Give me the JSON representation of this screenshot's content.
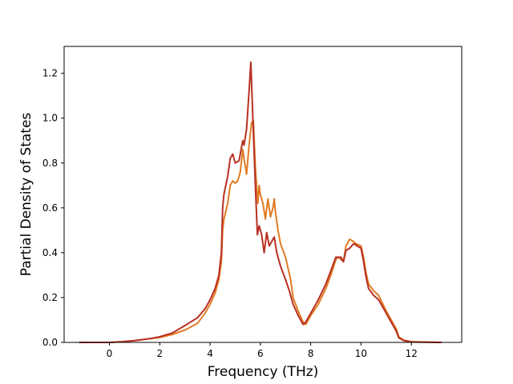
{
  "chart_data": {
    "type": "line",
    "title": "",
    "xlabel": "Frequency (THz)",
    "ylabel": "Partial Density of States",
    "xlim": [
      -1.8,
      14.0
    ],
    "ylim": [
      0.0,
      1.32
    ],
    "xticks": [
      0,
      2,
      4,
      6,
      8,
      10,
      12
    ],
    "xtick_labels": [
      "0",
      "2",
      "4",
      "6",
      "8",
      "10",
      "12"
    ],
    "yticks": [
      0.0,
      0.2,
      0.4,
      0.6,
      0.8,
      1.0,
      1.2
    ],
    "ytick_labels": [
      "0.0",
      "0.2",
      "0.4",
      "0.6",
      "0.8",
      "1.0",
      "1.2"
    ],
    "grid": false,
    "legend": "none",
    "series": [
      {
        "color": "#e07b24",
        "points": [
          [
            -1.2,
            0.0
          ],
          [
            0.0,
            0.0
          ],
          [
            0.5,
            0.003
          ],
          [
            1.0,
            0.008
          ],
          [
            1.5,
            0.015
          ],
          [
            2.0,
            0.022
          ],
          [
            2.5,
            0.035
          ],
          [
            3.0,
            0.055
          ],
          [
            3.5,
            0.085
          ],
          [
            3.8,
            0.13
          ],
          [
            4.0,
            0.17
          ],
          [
            4.2,
            0.22
          ],
          [
            4.35,
            0.28
          ],
          [
            4.45,
            0.36
          ],
          [
            4.5,
            0.5
          ],
          [
            4.55,
            0.55
          ],
          [
            4.7,
            0.62
          ],
          [
            4.8,
            0.7
          ],
          [
            4.9,
            0.72
          ],
          [
            5.0,
            0.71
          ],
          [
            5.1,
            0.72
          ],
          [
            5.2,
            0.76
          ],
          [
            5.3,
            0.86
          ],
          [
            5.35,
            0.82
          ],
          [
            5.45,
            0.75
          ],
          [
            5.55,
            0.88
          ],
          [
            5.65,
            0.98
          ],
          [
            5.72,
            0.99
          ],
          [
            5.8,
            0.78
          ],
          [
            5.9,
            0.62
          ],
          [
            5.95,
            0.7
          ],
          [
            6.0,
            0.66
          ],
          [
            6.1,
            0.62
          ],
          [
            6.2,
            0.55
          ],
          [
            6.3,
            0.64
          ],
          [
            6.4,
            0.56
          ],
          [
            6.5,
            0.6
          ],
          [
            6.55,
            0.64
          ],
          [
            6.6,
            0.58
          ],
          [
            6.7,
            0.5
          ],
          [
            6.8,
            0.44
          ],
          [
            7.0,
            0.38
          ],
          [
            7.1,
            0.33
          ],
          [
            7.2,
            0.28
          ],
          [
            7.3,
            0.2
          ],
          [
            7.5,
            0.14
          ],
          [
            7.7,
            0.09
          ],
          [
            7.8,
            0.08
          ],
          [
            8.0,
            0.12
          ],
          [
            8.3,
            0.17
          ],
          [
            8.6,
            0.24
          ],
          [
            8.8,
            0.3
          ],
          [
            9.0,
            0.37
          ],
          [
            9.1,
            0.38
          ],
          [
            9.3,
            0.36
          ],
          [
            9.4,
            0.43
          ],
          [
            9.55,
            0.46
          ],
          [
            9.7,
            0.45
          ],
          [
            9.8,
            0.44
          ],
          [
            10.0,
            0.43
          ],
          [
            10.1,
            0.38
          ],
          [
            10.2,
            0.31
          ],
          [
            10.3,
            0.26
          ],
          [
            10.5,
            0.23
          ],
          [
            10.7,
            0.21
          ],
          [
            11.0,
            0.14
          ],
          [
            11.2,
            0.1
          ],
          [
            11.4,
            0.06
          ],
          [
            11.5,
            0.025
          ],
          [
            11.7,
            0.01
          ],
          [
            12.0,
            0.003
          ],
          [
            13.2,
            0.0
          ]
        ]
      },
      {
        "color": "#b83023",
        "points": [
          [
            -1.2,
            0.0
          ],
          [
            0.0,
            0.0
          ],
          [
            0.5,
            0.003
          ],
          [
            1.0,
            0.008
          ],
          [
            1.5,
            0.015
          ],
          [
            2.0,
            0.025
          ],
          [
            2.5,
            0.042
          ],
          [
            3.0,
            0.075
          ],
          [
            3.5,
            0.11
          ],
          [
            3.8,
            0.15
          ],
          [
            4.0,
            0.19
          ],
          [
            4.2,
            0.24
          ],
          [
            4.35,
            0.3
          ],
          [
            4.45,
            0.4
          ],
          [
            4.5,
            0.6
          ],
          [
            4.55,
            0.66
          ],
          [
            4.7,
            0.74
          ],
          [
            4.8,
            0.82
          ],
          [
            4.9,
            0.84
          ],
          [
            5.0,
            0.8
          ],
          [
            5.15,
            0.81
          ],
          [
            5.3,
            0.9
          ],
          [
            5.35,
            0.88
          ],
          [
            5.45,
            0.95
          ],
          [
            5.55,
            1.12
          ],
          [
            5.62,
            1.25
          ],
          [
            5.7,
            1.0
          ],
          [
            5.8,
            0.7
          ],
          [
            5.88,
            0.48
          ],
          [
            5.95,
            0.52
          ],
          [
            6.05,
            0.48
          ],
          [
            6.15,
            0.4
          ],
          [
            6.25,
            0.49
          ],
          [
            6.35,
            0.43
          ],
          [
            6.45,
            0.45
          ],
          [
            6.55,
            0.47
          ],
          [
            6.65,
            0.4
          ],
          [
            6.8,
            0.34
          ],
          [
            7.0,
            0.28
          ],
          [
            7.15,
            0.23
          ],
          [
            7.3,
            0.17
          ],
          [
            7.5,
            0.12
          ],
          [
            7.7,
            0.08
          ],
          [
            7.8,
            0.09
          ],
          [
            8.0,
            0.13
          ],
          [
            8.3,
            0.19
          ],
          [
            8.6,
            0.26
          ],
          [
            8.8,
            0.32
          ],
          [
            9.0,
            0.38
          ],
          [
            9.2,
            0.38
          ],
          [
            9.3,
            0.36
          ],
          [
            9.4,
            0.41
          ],
          [
            9.55,
            0.42
          ],
          [
            9.7,
            0.44
          ],
          [
            9.85,
            0.43
          ],
          [
            10.0,
            0.42
          ],
          [
            10.1,
            0.36
          ],
          [
            10.2,
            0.29
          ],
          [
            10.3,
            0.24
          ],
          [
            10.5,
            0.21
          ],
          [
            10.7,
            0.19
          ],
          [
            11.0,
            0.13
          ],
          [
            11.2,
            0.09
          ],
          [
            11.4,
            0.05
          ],
          [
            11.5,
            0.02
          ],
          [
            11.7,
            0.008
          ],
          [
            12.0,
            0.002
          ],
          [
            13.2,
            0.0
          ]
        ]
      }
    ]
  }
}
